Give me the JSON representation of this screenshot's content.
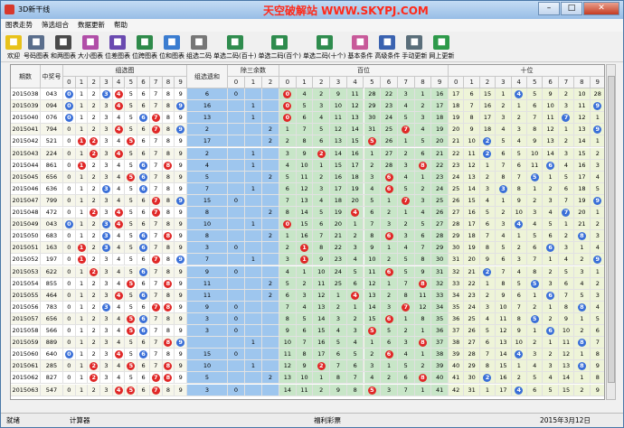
{
  "window": {
    "title": "3D新干线",
    "banner": "天空破解站 WWW.SKYPJ.COM"
  },
  "menu": [
    "图表走势",
    "筛选组合",
    "数据更新",
    "帮助"
  ],
  "toolbar": [
    {
      "label": "欢迎",
      "icon": "smiley-icon",
      "color": "#e8c21a"
    },
    {
      "label": "号码图表",
      "icon": "number-chart-icon",
      "color": "#5a6e8c"
    },
    {
      "label": "和两图表",
      "icon": "sum-chart-icon",
      "color": "#4a4a4a"
    },
    {
      "label": "大小图表",
      "icon": "size-chart-icon",
      "color": "#b14ea8"
    },
    {
      "label": "位差图表",
      "icon": "diff-chart-icon",
      "color": "#6a4ab0"
    },
    {
      "label": "位跨图表",
      "icon": "span-chart-icon",
      "color": "#2e8a4a"
    },
    {
      "label": "位和图表",
      "icon": "pie-chart-icon",
      "color": "#3a7cd0"
    },
    {
      "label": "组选二码",
      "icon": "pencil-icon",
      "color": "#777"
    },
    {
      "label": "单选二码(百十)",
      "icon": "grid-calc-icon",
      "color": "#2f8c4e"
    },
    {
      "label": "单选二码(百个)",
      "icon": "grid-calc-icon",
      "color": "#2f8c4e"
    },
    {
      "label": "单选二码(十个)",
      "icon": "grid-calc-icon",
      "color": "#2f8c4e"
    },
    {
      "label": "基本条件",
      "icon": "basic-filter-icon",
      "color": "#c85a9a"
    },
    {
      "label": "高级条件",
      "icon": "advanced-filter-icon",
      "color": "#3a62b0"
    },
    {
      "label": "手动更新",
      "icon": "manual-update-icon",
      "color": "#5a6e7a"
    },
    {
      "label": "网上更新",
      "icon": "online-update-icon",
      "color": "#2e9a4a"
    }
  ],
  "headers": {
    "period": "期数",
    "draw": "中奖号",
    "trend": "组选图",
    "miss": "组选遗和",
    "mod3": "除三余数",
    "hundreds": "百位",
    "tens": "十位"
  },
  "digits": [
    "0",
    "1",
    "2",
    "3",
    "4",
    "5",
    "6",
    "7",
    "8",
    "9"
  ],
  "mod3digits": [
    "0",
    "1",
    "2"
  ],
  "colors": {
    "ball_red": "#e02828",
    "ball_blue": "#3a6fd8",
    "hundreds_bg": "#c8e6c8",
    "tens_bg": "#eef4d8",
    "miss_bg": "#9ec6ee"
  },
  "rows": [
    {
      "p": "2015038",
      "n": "043",
      "sum": "6",
      "m": [
        "0",
        "",
        ""
      ],
      "h": [
        "0",
        "4",
        "2",
        "9",
        "11",
        "28",
        "22",
        "3",
        "1",
        "16"
      ],
      "t": [
        "17",
        "6",
        "15",
        "1",
        "4",
        "5",
        "9",
        "2",
        "10",
        "28"
      ]
    },
    {
      "p": "2015039",
      "n": "094",
      "sum": "16",
      "m": [
        "",
        "1",
        ""
      ],
      "h": [
        "0",
        "5",
        "3",
        "10",
        "12",
        "29",
        "23",
        "4",
        "2",
        "17"
      ],
      "t": [
        "18",
        "7",
        "16",
        "2",
        "1",
        "6",
        "10",
        "3",
        "11",
        "9"
      ]
    },
    {
      "p": "2015040",
      "n": "076",
      "sum": "13",
      "m": [
        "",
        "1",
        ""
      ],
      "h": [
        "0",
        "6",
        "4",
        "11",
        "13",
        "30",
        "24",
        "5",
        "3",
        "18"
      ],
      "t": [
        "19",
        "8",
        "17",
        "3",
        "2",
        "7",
        "11",
        "7",
        "12",
        "1"
      ]
    },
    {
      "p": "2015041",
      "n": "794",
      "sum": "2",
      "m": [
        "",
        "",
        "2"
      ],
      "h": [
        "1",
        "7",
        "5",
        "12",
        "14",
        "31",
        "25",
        "7",
        "4",
        "19"
      ],
      "t": [
        "20",
        "9",
        "18",
        "4",
        "3",
        "8",
        "12",
        "1",
        "13",
        "9"
      ]
    },
    {
      "p": "2015042",
      "n": "521",
      "sum": "17",
      "m": [
        "",
        "",
        "2"
      ],
      "h": [
        "2",
        "8",
        "6",
        "13",
        "15",
        "5",
        "26",
        "1",
        "5",
        "20"
      ],
      "t": [
        "21",
        "10",
        "2",
        "5",
        "4",
        "9",
        "13",
        "2",
        "14",
        "1"
      ]
    },
    {
      "p": "2015043",
      "n": "224",
      "sum": "2",
      "m": [
        "",
        "1",
        ""
      ],
      "h": [
        "3",
        "9",
        "2",
        "14",
        "16",
        "1",
        "27",
        "2",
        "6",
        "21"
      ],
      "t": [
        "22",
        "11",
        "2",
        "6",
        "5",
        "10",
        "14",
        "3",
        "15",
        "2"
      ]
    },
    {
      "p": "2015044",
      "n": "861",
      "sum": "4",
      "m": [
        "",
        "1",
        ""
      ],
      "h": [
        "4",
        "10",
        "1",
        "15",
        "17",
        "2",
        "28",
        "3",
        "8",
        "22"
      ],
      "t": [
        "23",
        "12",
        "1",
        "7",
        "6",
        "11",
        "6",
        "4",
        "16",
        "3"
      ]
    },
    {
      "p": "2015045",
      "n": "656",
      "sum": "5",
      "m": [
        "",
        "",
        "2"
      ],
      "h": [
        "5",
        "11",
        "2",
        "16",
        "18",
        "3",
        "6",
        "4",
        "1",
        "23"
      ],
      "t": [
        "24",
        "13",
        "2",
        "8",
        "7",
        "5",
        "1",
        "5",
        "17",
        "4"
      ]
    },
    {
      "p": "2015046",
      "n": "636",
      "sum": "7",
      "m": [
        "",
        "1",
        ""
      ],
      "h": [
        "6",
        "12",
        "3",
        "17",
        "19",
        "4",
        "6",
        "5",
        "2",
        "24"
      ],
      "t": [
        "25",
        "14",
        "3",
        "3",
        "8",
        "1",
        "2",
        "6",
        "18",
        "5"
      ]
    },
    {
      "p": "2015047",
      "n": "799",
      "sum": "15",
      "m": [
        "0",
        "",
        ""
      ],
      "h": [
        "7",
        "13",
        "4",
        "18",
        "20",
        "5",
        "1",
        "7",
        "3",
        "25"
      ],
      "t": [
        "26",
        "15",
        "4",
        "1",
        "9",
        "2",
        "3",
        "7",
        "19",
        "9"
      ]
    },
    {
      "p": "2015048",
      "n": "472",
      "sum": "8",
      "m": [
        "",
        "",
        "2"
      ],
      "h": [
        "8",
        "14",
        "5",
        "19",
        "4",
        "6",
        "2",
        "1",
        "4",
        "26"
      ],
      "t": [
        "27",
        "16",
        "5",
        "2",
        "10",
        "3",
        "4",
        "7",
        "20",
        "1"
      ]
    },
    {
      "p": "2015049",
      "n": "043",
      "sum": "10",
      "m": [
        "",
        "1",
        ""
      ],
      "h": [
        "0",
        "15",
        "6",
        "20",
        "1",
        "7",
        "3",
        "2",
        "5",
        "27"
      ],
      "t": [
        "28",
        "17",
        "6",
        "3",
        "4",
        "4",
        "5",
        "1",
        "21",
        "2"
      ]
    },
    {
      "p": "2015050",
      "n": "683",
      "sum": "8",
      "m": [
        "",
        "",
        "2"
      ],
      "h": [
        "1",
        "16",
        "7",
        "21",
        "2",
        "8",
        "6",
        "3",
        "6",
        "28"
      ],
      "t": [
        "29",
        "18",
        "7",
        "4",
        "1",
        "5",
        "6",
        "2",
        "8",
        "3"
      ]
    },
    {
      "p": "2015051",
      "n": "163",
      "sum": "3",
      "m": [
        "0",
        "",
        ""
      ],
      "h": [
        "2",
        "1",
        "8",
        "22",
        "3",
        "9",
        "1",
        "4",
        "7",
        "29"
      ],
      "t": [
        "30",
        "19",
        "8",
        "5",
        "2",
        "6",
        "6",
        "3",
        "1",
        "4"
      ]
    },
    {
      "p": "2015052",
      "n": "197",
      "sum": "7",
      "m": [
        "",
        "1",
        ""
      ],
      "h": [
        "3",
        "1",
        "9",
        "23",
        "4",
        "10",
        "2",
        "5",
        "8",
        "30"
      ],
      "t": [
        "31",
        "20",
        "9",
        "6",
        "3",
        "7",
        "1",
        "4",
        "2",
        "9"
      ]
    },
    {
      "p": "2015053",
      "n": "622",
      "sux": "",
      "sum": "9",
      "m": [
        "0",
        "",
        ""
      ],
      "h": [
        "4",
        "1",
        "10",
        "24",
        "5",
        "11",
        "6",
        "5",
        "9",
        "31"
      ],
      "t": [
        "32",
        "21",
        "2",
        "7",
        "4",
        "8",
        "2",
        "5",
        "3",
        "1"
      ]
    },
    {
      "p": "2015054",
      "n": "855",
      "sum": "11",
      "m": [
        "",
        "",
        "2"
      ],
      "h": [
        "5",
        "2",
        "11",
        "25",
        "6",
        "12",
        "1",
        "7",
        "8",
        "32"
      ],
      "t": [
        "33",
        "22",
        "1",
        "8",
        "5",
        "5",
        "3",
        "6",
        "4",
        "2"
      ]
    },
    {
      "p": "2015055",
      "n": "464",
      "sum": "11",
      "m": [
        "",
        "",
        "2"
      ],
      "h": [
        "6",
        "3",
        "12",
        "1",
        "4",
        "13",
        "2",
        "8",
        "11",
        "33"
      ],
      "t": [
        "34",
        "23",
        "2",
        "9",
        "6",
        "1",
        "6",
        "7",
        "5",
        "3"
      ]
    },
    {
      "p": "2015056",
      "n": "783",
      "sum": "9",
      "m": [
        "0",
        "",
        ""
      ],
      "h": [
        "7",
        "4",
        "13",
        "2",
        "1",
        "14",
        "3",
        "7",
        "12",
        "34"
      ],
      "t": [
        "35",
        "24",
        "3",
        "10",
        "7",
        "2",
        "1",
        "8",
        "6",
        "4"
      ]
    },
    {
      "p": "2015057",
      "n": "656",
      "sum": "3",
      "m": [
        "0",
        "",
        ""
      ],
      "h": [
        "8",
        "5",
        "14",
        "3",
        "2",
        "15",
        "4",
        "1",
        "8",
        "35"
      ],
      "t": [
        "36",
        "25",
        "4",
        "11",
        "8",
        "5",
        "2",
        "9",
        "1",
        "5"
      ]
    },
    {
      "p": "2015058",
      "n": "566",
      "sum": "3",
      "m": [
        "0",
        "",
        ""
      ],
      "h": [
        "9",
        "6",
        "15",
        "4",
        "3",
        "5",
        "5",
        "2",
        "1",
        "36"
      ],
      "t": [
        "37",
        "26",
        "5",
        "12",
        "9",
        "1",
        "6",
        "10",
        "2",
        "6"
      ]
    },
    {
      "p": "2015059",
      "n": "889",
      "sum": "",
      "m": [
        "",
        "1",
        ""
      ],
      "h": [
        "10",
        "7",
        "16",
        "5",
        "4",
        "1",
        "6",
        "3",
        "8",
        "37"
      ],
      "t": [
        "38",
        "27",
        "6",
        "13",
        "10",
        "2",
        "1",
        "11",
        "8",
        "7"
      ]
    },
    {
      "p": "2015060",
      "n": "640",
      "sum": "15",
      "m": [
        "0",
        "",
        ""
      ],
      "h": [
        "11",
        "8",
        "17",
        "6",
        "5",
        "2",
        "6",
        "4",
        "1",
        "38"
      ],
      "t": [
        "39",
        "28",
        "7",
        "14",
        "4",
        "3",
        "2",
        "12",
        "1",
        "8"
      ]
    },
    {
      "p": "2015061",
      "n": "285",
      "sum": "10",
      "m": [
        "",
        "1",
        ""
      ],
      "h": [
        "12",
        "9",
        "2",
        "7",
        "6",
        "3",
        "1",
        "5",
        "2",
        "39"
      ],
      "t": [
        "40",
        "29",
        "8",
        "15",
        "1",
        "4",
        "3",
        "13",
        "8",
        "9"
      ]
    },
    {
      "p": "2015062",
      "n": "827",
      "sum": "5",
      "m": [
        "",
        "",
        "2"
      ],
      "h": [
        "13",
        "10",
        "1",
        "8",
        "7",
        "4",
        "2",
        "6",
        "8",
        "40"
      ],
      "t": [
        "41",
        "30",
        "2",
        "16",
        "2",
        "5",
        "4",
        "14",
        "1",
        "8"
      ]
    },
    {
      "p": "2015063",
      "n": "547",
      "sum": "3",
      "m": [
        "0",
        "",
        ""
      ],
      "h": [
        "14",
        "11",
        "2",
        "9",
        "8",
        "5",
        "3",
        "7",
        "1",
        "41"
      ],
      "t": [
        "42",
        "31",
        "1",
        "17",
        "4",
        "6",
        "5",
        "15",
        "2",
        "9"
      ]
    }
  ],
  "status": {
    "ready": "就绪",
    "calc": "计算器",
    "source": "福利彩票",
    "date": "2015年3月12日"
  }
}
